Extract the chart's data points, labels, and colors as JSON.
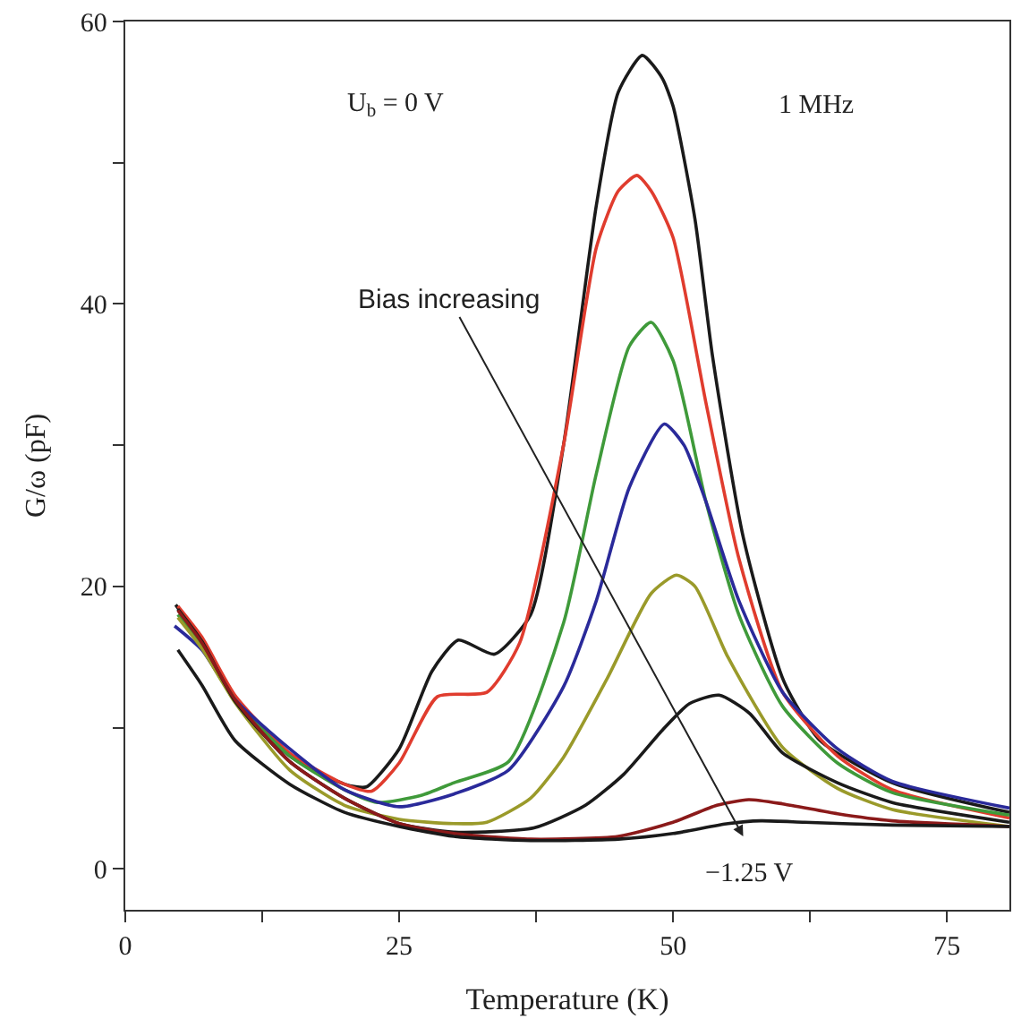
{
  "chart_data": {
    "type": "line",
    "xlabel": "Temperature (K)",
    "ylabel": "G/ω (pF)",
    "xlim": [
      0,
      80.7
    ],
    "ylim": [
      -2.9,
      60
    ],
    "xticks": [
      0,
      {
        "value": 12.5,
        "label": null
      },
      25,
      {
        "value": 37.5,
        "label": null
      },
      50,
      {
        "value": 62.5,
        "label": null
      },
      75
    ],
    "yticks": [
      0,
      {
        "value": 10,
        "label": null
      },
      20,
      {
        "value": 30,
        "label": null
      },
      40,
      {
        "value": 50,
        "label": null
      },
      60
    ],
    "marker": "none",
    "line_style": "solid",
    "annotations": [
      "U$_{b}$ = 0 V",
      "1 MHz",
      "Bias increasing",
      "−1.25 V"
    ],
    "series": [
      {
        "color": "#1a1a1a",
        "x": [
          4.6,
          7,
          10,
          15,
          20,
          22,
          25,
          28,
          30.4,
          33.7,
          37,
          40,
          43,
          45,
          47.2,
          49,
          50,
          52,
          53.6,
          56.4,
          60.1,
          63.4,
          70,
          80.7
        ],
        "values": [
          18.7,
          16,
          12,
          8,
          6,
          5.8,
          8.5,
          14,
          16.2,
          15.2,
          18,
          30,
          47,
          55,
          57.6,
          56,
          54,
          46,
          36.3,
          23.5,
          13.3,
          9.1,
          6.1,
          4.0
        ]
      },
      {
        "color": "#e03c2e",
        "x": [
          4.8,
          7,
          10,
          15,
          20,
          22.5,
          25,
          28.5,
          33,
          36,
          40,
          43,
          45,
          46.7,
          48,
          50,
          53,
          56,
          60,
          65,
          70,
          80.7
        ],
        "values": [
          18.6,
          16.4,
          12.3,
          8.2,
          6,
          5.5,
          7.5,
          12.2,
          12.5,
          16,
          30,
          44,
          48,
          49.1,
          48,
          44.7,
          33,
          22,
          12.5,
          8,
          5.6,
          3.6
        ]
      },
      {
        "color": "#3f9a3a",
        "x": [
          4.8,
          7,
          10,
          15,
          20,
          23,
          27,
          30,
          35,
          40,
          43,
          46,
          48,
          50,
          53,
          56,
          60,
          65,
          70,
          80.7
        ],
        "values": [
          18.0,
          15.8,
          12,
          8,
          5.6,
          4.7,
          5.2,
          6.1,
          7.6,
          17.4,
          28,
          37,
          38.7,
          36,
          26,
          18,
          11.5,
          7.5,
          5.4,
          3.8
        ]
      },
      {
        "color": "#2a2a9a",
        "x": [
          4.5,
          7,
          10,
          15,
          20,
          25,
          30,
          35,
          40,
          43,
          46,
          49.2,
          51,
          53,
          56,
          60,
          65,
          70,
          80.7
        ],
        "values": [
          17.2,
          15.5,
          12,
          8.5,
          5.6,
          4.4,
          5.3,
          7,
          12.9,
          19,
          27,
          31.5,
          30,
          26,
          19,
          12.5,
          8.5,
          6.2,
          4.3
        ]
      },
      {
        "color": "#9a9a2a",
        "x": [
          4.8,
          7,
          10,
          15,
          20,
          25,
          30,
          33,
          37,
          40,
          44,
          48,
          50.3,
          52,
          55,
          60,
          65,
          70,
          80.7
        ],
        "values": [
          17.8,
          15.6,
          11.8,
          7,
          4.5,
          3.5,
          3.2,
          3.3,
          5,
          7.9,
          13.5,
          19.5,
          20.8,
          20,
          15,
          8.6,
          5.7,
          4.2,
          3.0
        ]
      },
      {
        "color": "#1a1a1a",
        "x": [
          4.8,
          7,
          10,
          15,
          20,
          25,
          30,
          37.3,
          42,
          45.5,
          49,
          51.5,
          54.2,
          57,
          60,
          65,
          70,
          80.7
        ],
        "values": [
          18.4,
          16.1,
          11.9,
          7.6,
          5,
          3.2,
          2.6,
          2.9,
          4.5,
          6.7,
          9.8,
          11.7,
          12.3,
          11,
          8.2,
          6.1,
          4.7,
          3.3
        ]
      },
      {
        "color": "#8b1a1a",
        "x": [
          4.8,
          7,
          10,
          15,
          20,
          25,
          30,
          37,
          45,
          50,
          54,
          56.9,
          60,
          65,
          70,
          80.7
        ],
        "values": [
          18.3,
          16,
          12,
          7.6,
          5,
          3.2,
          2.5,
          2.1,
          2.3,
          3.3,
          4.5,
          4.9,
          4.6,
          3.9,
          3.4,
          3.0
        ]
      },
      {
        "color": "#1a1a1a",
        "x": [
          4.8,
          7,
          10,
          15,
          20,
          25,
          30,
          37,
          45,
          50,
          55,
          58,
          62,
          70,
          80.7
        ],
        "values": [
          15.5,
          13,
          9.1,
          6,
          4,
          3,
          2.3,
          2,
          2.1,
          2.5,
          3.2,
          3.4,
          3.3,
          3.1,
          3.0
        ]
      }
    ]
  }
}
